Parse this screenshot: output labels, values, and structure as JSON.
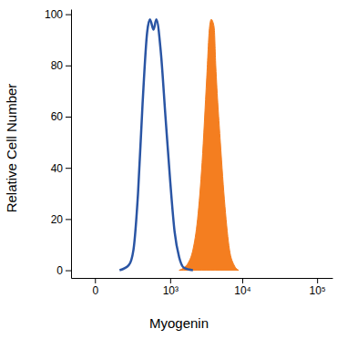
{
  "chart_data": {
    "type": "line",
    "x_label": "Myogenin",
    "y_label": "Relative Cell Number",
    "log": "x",
    "xlim": [
      -120,
      160000
    ],
    "xticks": [
      0,
      {
        "value": 1000,
        "label": "10³"
      },
      {
        "value": 10000,
        "label": "10⁴"
      },
      {
        "value": 100000,
        "label": "10⁵"
      }
    ],
    "ylim": [
      -3,
      102
    ],
    "yticks": [
      0,
      20,
      40,
      60,
      80,
      100
    ],
    "series": [
      {
        "type": "line",
        "color": "#2a55a4",
        "x": [
          125,
          202,
          250,
          304,
          366,
          438,
          487,
          557,
          616,
          725,
          851,
          1000,
          1162,
          1354,
          1578,
          2120
        ],
        "values": [
          0,
          2,
          8,
          30,
          65,
          93,
          98,
          94,
          98,
          85,
          60,
          35,
          15,
          5,
          1,
          0
        ]
      },
      {
        "type": "area",
        "color": "#f47e20",
        "x": [
          1354,
          1578,
          1830,
          2120,
          2460,
          2840,
          3290,
          3600,
          3800,
          4160,
          4380,
          5060,
          5840,
          6730,
          7760,
          8940
        ],
        "values": [
          0,
          1,
          3,
          8,
          20,
          42,
          75,
          95,
          98,
          95,
          80,
          50,
          25,
          8,
          2,
          0
        ]
      }
    ]
  }
}
